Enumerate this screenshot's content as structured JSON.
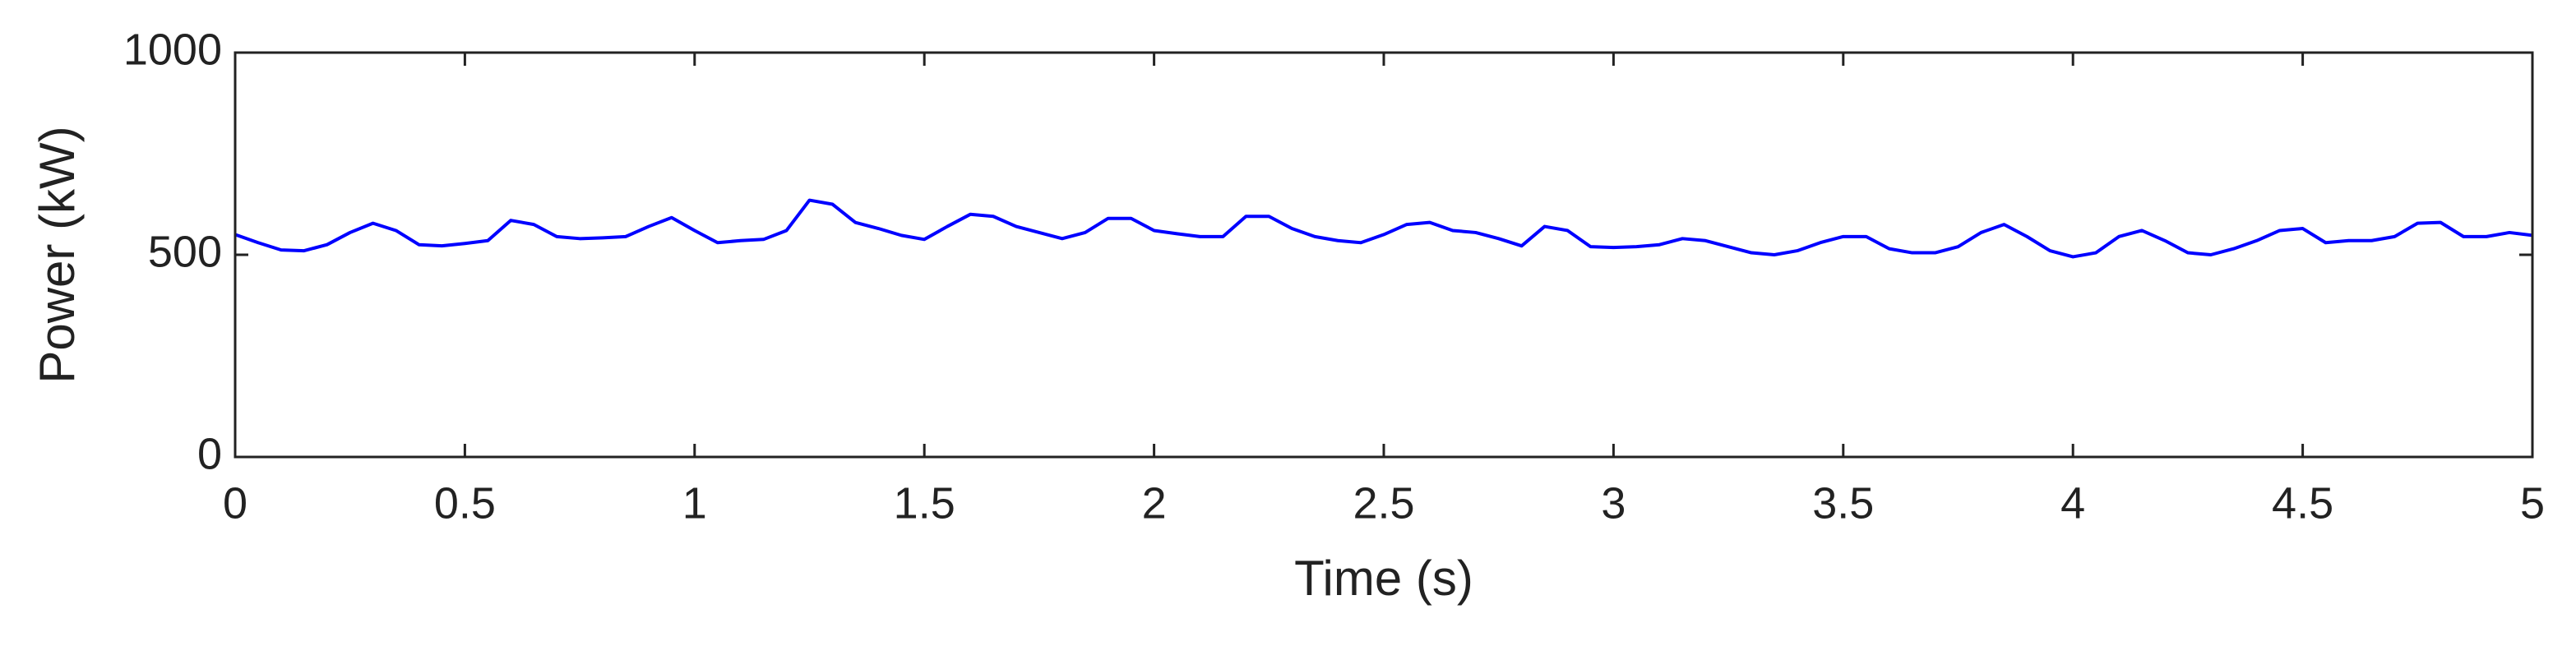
{
  "chart_data": {
    "type": "line",
    "xlabel": "Time (s)",
    "ylabel": "Power (kW)",
    "x": [
      0,
      0.05,
      0.1,
      0.15,
      0.2,
      0.25,
      0.3,
      0.35,
      0.4,
      0.45,
      0.5,
      0.55,
      0.6,
      0.65,
      0.7,
      0.75,
      0.8,
      0.85,
      0.9,
      0.95,
      1,
      1.05,
      1.1,
      1.15,
      1.2,
      1.25,
      1.3,
      1.35,
      1.4,
      1.45,
      1.5,
      1.55,
      1.6,
      1.65,
      1.7,
      1.75,
      1.8,
      1.85,
      1.9,
      1.95,
      2,
      2.05,
      2.1,
      2.15,
      2.2,
      2.25,
      2.3,
      2.35,
      2.4,
      2.45,
      2.5,
      2.55,
      2.6,
      2.65,
      2.7,
      2.75,
      2.8,
      2.85,
      2.9,
      2.95,
      3,
      3.05,
      3.1,
      3.15,
      3.2,
      3.25,
      3.3,
      3.35,
      3.4,
      3.45,
      3.5,
      3.55,
      3.6,
      3.65,
      3.7,
      3.75,
      3.8,
      3.85,
      3.9,
      3.95,
      4,
      4.05,
      4.1,
      4.15,
      4.2,
      4.25,
      4.3,
      4.35,
      4.4,
      4.45,
      4.5,
      4.55,
      4.6,
      4.65,
      4.7,
      4.75,
      4.8,
      4.85,
      4.9,
      4.95,
      5
    ],
    "series": [
      {
        "color": "#0000ff",
        "values": [
          550,
          530,
          512,
          510,
          525,
          555,
          578,
          560,
          525,
          522,
          528,
          535,
          585,
          575,
          545,
          540,
          542,
          545,
          570,
          592,
          560,
          530,
          535,
          538,
          560,
          635,
          625,
          580,
          565,
          548,
          538,
          570,
          600,
          595,
          570,
          555,
          540,
          555,
          590,
          590,
          560,
          552,
          545,
          545,
          595,
          595,
          565,
          545,
          535,
          530,
          550,
          575,
          580,
          560,
          555,
          540,
          522,
          570,
          560,
          520,
          518,
          520,
          525,
          540,
          535,
          520,
          505,
          500,
          510,
          530,
          545,
          545,
          515,
          505,
          505,
          520,
          555,
          575,
          545,
          510,
          495,
          505,
          545,
          560,
          535,
          505,
          500,
          515,
          535,
          560,
          565,
          530,
          535,
          535,
          545,
          578,
          580,
          545,
          545,
          555,
          548
        ]
      }
    ],
    "xlim": [
      0,
      5
    ],
    "xticks": [
      0,
      0.5,
      1,
      1.5,
      2,
      2.5,
      3,
      3.5,
      4,
      4.5,
      5
    ],
    "ylim": [
      0,
      1000
    ],
    "yticks": [
      0,
      500,
      1000
    ]
  }
}
